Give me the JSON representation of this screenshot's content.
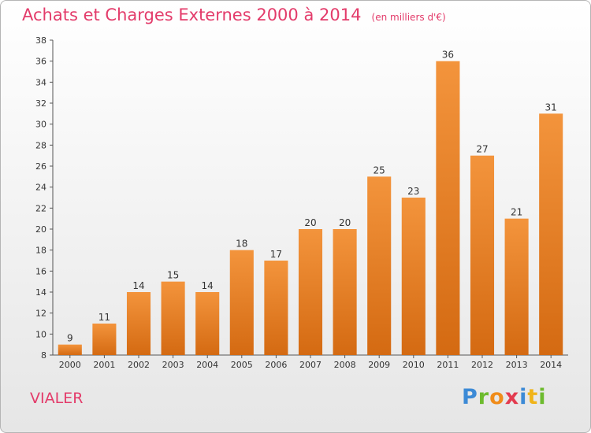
{
  "chart_data": {
    "type": "bar",
    "title": "Achats et Charges Externes 2000 à 2014",
    "subtitle": "(en milliers d'€)",
    "xlabel": "",
    "ylabel": "",
    "categories": [
      "2000",
      "2001",
      "2002",
      "2003",
      "2004",
      "2005",
      "2006",
      "2007",
      "2008",
      "2009",
      "2010",
      "2011",
      "2012",
      "2013",
      "2014"
    ],
    "values": [
      9,
      11,
      14,
      15,
      14,
      18,
      17,
      20,
      20,
      25,
      23,
      36,
      27,
      21,
      31
    ],
    "ylim": [
      8,
      38
    ],
    "yticks": [
      8,
      10,
      12,
      14,
      16,
      18,
      20,
      22,
      24,
      26,
      28,
      30,
      32,
      34,
      36,
      38
    ],
    "grid": false,
    "bar_color": "#f3943c",
    "bar_color_dark": "#d46a12"
  },
  "footer": {
    "place": "VIALER",
    "brand_letters": [
      {
        "ch": "P",
        "color": "#3c8ad6"
      },
      {
        "ch": "r",
        "color": "#6dbb2e"
      },
      {
        "ch": "o",
        "color": "#f08c1a"
      },
      {
        "ch": "x",
        "color": "#e33b4f"
      },
      {
        "ch": "i",
        "color": "#3c8ad6"
      },
      {
        "ch": "t",
        "color": "#f0b41a"
      },
      {
        "ch": "i",
        "color": "#6dbb2e"
      }
    ]
  }
}
